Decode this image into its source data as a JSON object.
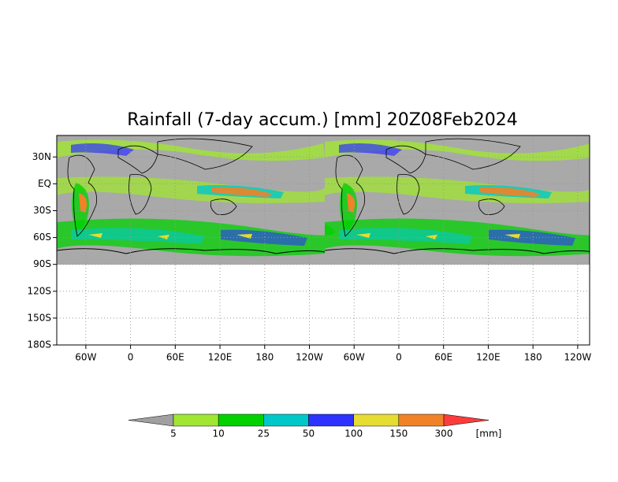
{
  "chart_data": {
    "type": "map",
    "title": "Rainfall (7-day accum.) [mm] 20Z08Feb2024",
    "xlim": [
      -99,
      616
    ],
    "ylim": [
      -180,
      54
    ],
    "xticks": [
      {
        "value": -60,
        "label": "60W"
      },
      0,
      {
        "value": 60,
        "label": "60E"
      },
      {
        "value": 120,
        "label": "120E"
      },
      {
        "value": 180,
        "label": "180"
      },
      {
        "value": 240,
        "label": "120W"
      },
      {
        "value": 300,
        "label": "60W"
      },
      {
        "value": 360,
        "label": "0"
      },
      {
        "value": 420,
        "label": "60E"
      },
      {
        "value": 480,
        "label": "120E"
      },
      {
        "value": 540,
        "label": "180"
      },
      {
        "value": 600,
        "label": "120W"
      }
    ],
    "yticks": [
      {
        "value": 30,
        "label": "30N"
      },
      {
        "value": 0,
        "label": "EQ"
      },
      {
        "value": -30,
        "label": "30S"
      },
      {
        "value": -60,
        "label": "60S"
      },
      {
        "value": -90,
        "label": "90S"
      },
      {
        "value": -120,
        "label": "120S"
      },
      {
        "value": -150,
        "label": "150S"
      },
      {
        "value": -180,
        "label": "180S"
      }
    ],
    "grid": true,
    "colorbar": {
      "levels": [
        5,
        10,
        25,
        50,
        100,
        150,
        300
      ],
      "colors": [
        "#a0a0a0",
        "#a0e632",
        "#00d200",
        "#00c8c8",
        "#2d32ff",
        "#e6dc32",
        "#f08228",
        "#fa3c3c"
      ],
      "unit": "[mm]"
    }
  }
}
